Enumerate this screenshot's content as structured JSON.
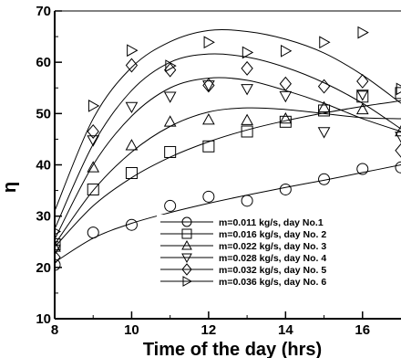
{
  "chart_data": {
    "type": "scatter",
    "title": "",
    "xlabel": "Time of the day (hrs)",
    "ylabel": "η",
    "xlim": [
      8,
      17
    ],
    "ylim": [
      10,
      70
    ],
    "xticks": [
      8,
      10,
      12,
      14,
      16
    ],
    "yticks": [
      10,
      20,
      30,
      40,
      50,
      60,
      70
    ],
    "grid": false,
    "legend_position": "lower-right",
    "series": [
      {
        "name": "m=0.011 kg/s, day No.1",
        "marker": "circle",
        "x": [
          8,
          9,
          10,
          11,
          12,
          13,
          14,
          15,
          16,
          17
        ],
        "y": [
          20.5,
          26.8,
          28.3,
          32,
          33.8,
          33,
          35.2,
          37.2,
          39.2,
          39.5
        ],
        "fit": [
          [
            8,
            21
          ],
          [
            9,
            25.7
          ],
          [
            10,
            28.6
          ],
          [
            11,
            30.7
          ],
          [
            12,
            32.5
          ],
          [
            13,
            34.1
          ],
          [
            14,
            35.6
          ],
          [
            15,
            37
          ],
          [
            16,
            38.5
          ],
          [
            17,
            40
          ]
        ]
      },
      {
        "name": "m=0.016 kg/s, day No. 2",
        "marker": "square",
        "x": [
          8,
          9,
          10,
          11,
          12,
          13,
          14,
          15,
          16,
          17
        ],
        "y": [
          24.5,
          35.2,
          38.4,
          42.5,
          43.6,
          46.5,
          48.4,
          50.6,
          53.3,
          54
        ],
        "fit": [
          [
            8,
            24
          ],
          [
            9,
            32
          ],
          [
            10,
            37.5
          ],
          [
            11,
            41.5
          ],
          [
            12,
            44.5
          ],
          [
            13,
            46.8
          ],
          [
            14,
            48.6
          ],
          [
            15,
            50.1
          ],
          [
            16,
            51.4
          ],
          [
            17,
            52.5
          ]
        ]
      },
      {
        "name": "m=0.022 kg/s, day No. 3",
        "marker": "triangle-up",
        "x": [
          8,
          9,
          10,
          11,
          12,
          13,
          14,
          15,
          16,
          17
        ],
        "y": [
          24,
          39.5,
          43.8,
          48.4,
          48.8,
          48.7,
          49,
          51.2,
          50.8,
          46.5
        ],
        "fit": [
          [
            8,
            24.5
          ],
          [
            9,
            35
          ],
          [
            10,
            42.5
          ],
          [
            11,
            47.5
          ],
          [
            12,
            50.3
          ],
          [
            13,
            51.1
          ],
          [
            14,
            50.8
          ],
          [
            15,
            50
          ],
          [
            16,
            49.2
          ],
          [
            17,
            49
          ]
        ]
      },
      {
        "name": "m=0.028 kg/s, day No. 4",
        "marker": "triangle-down",
        "x": [
          8,
          9,
          10,
          11,
          12,
          13,
          14,
          15,
          16,
          17
        ],
        "y": [
          23.5,
          44.8,
          51.3,
          53.3,
          55.5,
          54.8,
          53.4,
          46.4,
          53.7,
          45.5
        ],
        "fit": [
          [
            8,
            25.5
          ],
          [
            9,
            40
          ],
          [
            10,
            49.5
          ],
          [
            11,
            55
          ],
          [
            12,
            56.9
          ],
          [
            13,
            56.5
          ],
          [
            14,
            54.5
          ],
          [
            15,
            52
          ],
          [
            16,
            49
          ],
          [
            17,
            46.5
          ]
        ]
      },
      {
        "name": "m=0.032 kg/s, day No. 5",
        "marker": "diamond",
        "x": [
          8,
          9,
          10,
          11,
          12,
          13,
          14,
          15,
          16,
          17
        ],
        "y": [
          22,
          46.5,
          59.4,
          58.5,
          55.5,
          58.8,
          55.8,
          55.3,
          56.3,
          42.8
        ],
        "fit": [
          [
            8,
            27.5
          ],
          [
            9,
            44
          ],
          [
            10,
            54.5
          ],
          [
            11,
            60
          ],
          [
            12,
            61.6
          ],
          [
            13,
            61
          ],
          [
            14,
            59
          ],
          [
            15,
            56
          ],
          [
            16,
            52
          ],
          [
            17,
            47
          ]
        ]
      },
      {
        "name": "m=0.036 kg/s, day No. 6",
        "marker": "triangle-right",
        "x": [
          8,
          9,
          10,
          11,
          12,
          13,
          14,
          15,
          16,
          17
        ],
        "y": [
          27,
          51.5,
          62.3,
          59.3,
          63.9,
          61.9,
          62.2,
          63.9,
          65.8,
          54.8
        ],
        "fit": [
          [
            8,
            31
          ],
          [
            9,
            49
          ],
          [
            10,
            59
          ],
          [
            11,
            64
          ],
          [
            12,
            66.2
          ],
          [
            13,
            66
          ],
          [
            14,
            64.5
          ],
          [
            15,
            61.8
          ],
          [
            16,
            57.5
          ],
          [
            17,
            52
          ]
        ]
      }
    ]
  }
}
